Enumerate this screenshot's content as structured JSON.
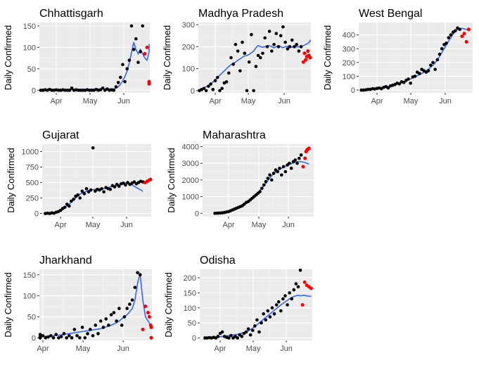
{
  "colors": {
    "panel_bg": "#ebebeb",
    "grid_major": "#ffffff",
    "grid_minor": "#f5f5f5",
    "observed": "#000000",
    "recent": "#ff0000",
    "fitted": "#3366ff",
    "tick_text": "#4d4d4d"
  },
  "chart_data": [
    {
      "type": "scatter",
      "title": "Chhattisgarh",
      "ylabel": "Daily Confirmed",
      "x_ticks": [
        "Apr",
        "May",
        "Jun"
      ],
      "y_ticks": [
        0,
        50,
        100,
        150
      ],
      "ylim": [
        -6,
        158
      ],
      "x": [
        -14,
        -12,
        -10,
        -8,
        -6,
        -4,
        -2,
        0,
        2,
        4,
        6,
        8,
        10,
        12,
        14,
        16,
        18,
        20,
        22,
        24,
        26,
        28,
        30,
        32,
        34,
        36,
        38,
        40,
        42,
        44,
        46,
        48,
        50,
        52,
        54,
        56,
        58,
        60,
        62,
        64,
        66,
        68,
        70,
        72,
        74,
        76,
        78
      ],
      "values": [
        0,
        0,
        1,
        0,
        2,
        0,
        0,
        1,
        0,
        0,
        1,
        0,
        0,
        0,
        5,
        0,
        1,
        0,
        0,
        0,
        0,
        1,
        0,
        0,
        0,
        2,
        0,
        1,
        5,
        0,
        3,
        0,
        1,
        0,
        8,
        18,
        30,
        60,
        20,
        50,
        70,
        150,
        95,
        120,
        65,
        90,
        150
      ],
      "fitted": [
        0,
        0,
        0,
        0,
        1,
        1,
        1,
        1,
        1,
        1,
        1,
        1,
        1,
        1,
        1,
        1,
        2,
        2,
        2,
        2,
        2,
        2,
        2,
        2,
        2,
        2,
        3,
        3,
        3,
        3,
        3,
        3,
        3,
        3,
        5,
        8,
        14,
        22,
        32,
        45,
        65,
        88,
        112,
        95,
        85,
        95,
        85
      ],
      "recent": [
        {
          "x": 80,
          "y": 85
        },
        {
          "x": 82,
          "y": 100
        },
        {
          "x": 84,
          "y": 20
        },
        {
          "x": 86,
          "y": 15
        }
      ],
      "recent_fitted": [
        {
          "x": 78,
          "y": 85
        },
        {
          "x": 80,
          "y": 75
        },
        {
          "x": 82,
          "y": 70
        },
        {
          "x": 84,
          "y": 90
        },
        {
          "x": 86,
          "y": 108
        }
      ]
    },
    {
      "type": "scatter",
      "title": "Madhya Pradesh",
      "ylabel": "Daily Confirmed",
      "x_ticks": [
        "Apr",
        "May",
        "Jun"
      ],
      "y_ticks": [
        0,
        100,
        200,
        300
      ],
      "ylim": [
        -10,
        310
      ],
      "x": [
        -14,
        -12,
        -10,
        -8,
        -6,
        -4,
        -2,
        0,
        2,
        4,
        6,
        8,
        10,
        12,
        14,
        16,
        18,
        20,
        22,
        24,
        26,
        28,
        30,
        32,
        34,
        36,
        38,
        40,
        42,
        44,
        46,
        48,
        50,
        52,
        54,
        56,
        58,
        60,
        62,
        64,
        66,
        68,
        70,
        72,
        74,
        76
      ],
      "values": [
        0,
        5,
        10,
        0,
        20,
        30,
        5,
        45,
        60,
        0,
        10,
        35,
        40,
        80,
        150,
        120,
        210,
        180,
        90,
        220,
        170,
        0,
        130,
        255,
        0,
        110,
        160,
        150,
        170,
        240,
        200,
        270,
        180,
        210,
        260,
        200,
        250,
        290,
        220,
        190,
        200,
        230,
        200,
        210,
        180,
        200
      ],
      "fitted": [
        5,
        8,
        12,
        18,
        24,
        30,
        40,
        50,
        60,
        70,
        80,
        90,
        100,
        110,
        118,
        125,
        130,
        138,
        145,
        152,
        158,
        160,
        165,
        172,
        180,
        195,
        205,
        200,
        198,
        200,
        202,
        205,
        200,
        195,
        200,
        205,
        200,
        195,
        200,
        202,
        200,
        198,
        200,
        200,
        200,
        200
      ],
      "recent": [
        {
          "x": 78,
          "y": 130
        },
        {
          "x": 79,
          "y": 170
        },
        {
          "x": 80,
          "y": 140
        },
        {
          "x": 81,
          "y": 155
        },
        {
          "x": 82,
          "y": 180
        },
        {
          "x": 83,
          "y": 160
        },
        {
          "x": 84,
          "y": 150
        }
      ],
      "recent_fitted": [
        {
          "x": 76,
          "y": 200
        },
        {
          "x": 78,
          "y": 205
        },
        {
          "x": 80,
          "y": 210
        },
        {
          "x": 82,
          "y": 215
        },
        {
          "x": 84,
          "y": 225
        },
        {
          "x": 86,
          "y": 232
        }
      ]
    },
    {
      "type": "scatter",
      "title": "West Bengal",
      "ylabel": "Daily Confirmed",
      "x_ticks": [
        "Apr",
        "May",
        "Jun"
      ],
      "y_ticks": [
        0,
        100,
        200,
        300,
        400
      ],
      "ylim": [
        -20,
        490
      ],
      "x": [
        -14,
        -12,
        -10,
        -8,
        -6,
        -4,
        -2,
        0,
        2,
        4,
        6,
        8,
        10,
        12,
        14,
        16,
        18,
        20,
        22,
        24,
        26,
        28,
        30,
        32,
        34,
        36,
        38,
        40,
        42,
        44,
        46,
        48,
        50,
        52,
        54,
        56,
        58,
        60,
        62,
        64,
        66,
        68,
        70,
        72,
        74
      ],
      "values": [
        0,
        0,
        2,
        5,
        5,
        10,
        8,
        12,
        15,
        10,
        20,
        25,
        15,
        30,
        35,
        40,
        50,
        45,
        60,
        55,
        70,
        80,
        50,
        95,
        100,
        130,
        120,
        150,
        140,
        130,
        140,
        180,
        200,
        150,
        220,
        260,
        300,
        330,
        340,
        380,
        400,
        420,
        430,
        450,
        440
      ],
      "fitted": [
        0,
        1,
        2,
        3,
        5,
        7,
        9,
        12,
        15,
        18,
        21,
        24,
        27,
        30,
        34,
        38,
        43,
        48,
        54,
        60,
        67,
        74,
        81,
        89,
        97,
        105,
        112,
        120,
        130,
        140,
        152,
        165,
        180,
        198,
        220,
        245,
        272,
        300,
        328,
        355,
        380,
        405,
        425,
        440,
        448
      ],
      "recent": [
        {
          "x": 76,
          "y": 390
        },
        {
          "x": 78,
          "y": 410
        },
        {
          "x": 80,
          "y": 350
        },
        {
          "x": 82,
          "y": 440
        }
      ],
      "recent_fitted": [
        {
          "x": 74,
          "y": 448
        },
        {
          "x": 77,
          "y": 445
        },
        {
          "x": 80,
          "y": 440
        },
        {
          "x": 82,
          "y": 435
        }
      ]
    },
    {
      "type": "scatter",
      "title": "Gujarat",
      "ylabel": "Daily Confirmed",
      "x_ticks": [
        "Apr",
        "May",
        "Jun"
      ],
      "y_ticks": [
        0,
        250,
        500,
        750,
        1000
      ],
      "ylim": [
        -50,
        1120
      ],
      "x": [
        -14,
        -12,
        -10,
        -8,
        -6,
        -4,
        -2,
        0,
        2,
        4,
        6,
        8,
        10,
        12,
        14,
        16,
        18,
        20,
        22,
        24,
        26,
        28,
        30,
        32,
        34,
        36,
        38,
        40,
        42,
        44,
        46,
        48,
        50,
        52,
        54,
        56,
        58,
        60,
        62,
        64,
        66,
        68,
        70,
        72,
        74,
        76
      ],
      "values": [
        0,
        5,
        0,
        10,
        5,
        20,
        30,
        50,
        80,
        100,
        150,
        120,
        200,
        230,
        280,
        300,
        250,
        360,
        320,
        400,
        350,
        380,
        1060,
        360,
        390,
        380,
        400,
        350,
        420,
        400,
        390,
        450,
        430,
        470,
        440,
        480,
        490,
        460,
        500,
        470,
        490,
        510,
        480,
        500,
        520,
        510
      ],
      "fitted": [
        0,
        2,
        5,
        8,
        12,
        18,
        25,
        40,
        60,
        90,
        120,
        150,
        185,
        220,
        250,
        280,
        310,
        330,
        345,
        360,
        370,
        380,
        385,
        390,
        395,
        398,
        400,
        405,
        410,
        420,
        430,
        440,
        450,
        460,
        470,
        480,
        490,
        495,
        490,
        480,
        460,
        440,
        420,
        400,
        380,
        360
      ],
      "recent": [
        {
          "x": 78,
          "y": 500
        },
        {
          "x": 80,
          "y": 520
        },
        {
          "x": 82,
          "y": 540
        },
        {
          "x": 84,
          "y": 550
        }
      ],
      "recent_fitted": [
        {
          "x": 76,
          "y": 505
        },
        {
          "x": 79,
          "y": 510
        },
        {
          "x": 82,
          "y": 520
        },
        {
          "x": 84,
          "y": 525
        }
      ]
    },
    {
      "type": "scatter",
      "title": "Maharashtra",
      "ylabel": "Daily Confirmed",
      "x_ticks": [
        "Apr",
        "May",
        "Jun"
      ],
      "y_ticks": [
        0,
        1000,
        2000,
        3000,
        4000
      ],
      "ylim": [
        -200,
        4150
      ],
      "x": [
        -14,
        -12,
        -10,
        -8,
        -6,
        -4,
        -2,
        0,
        2,
        4,
        6,
        8,
        10,
        12,
        14,
        16,
        18,
        20,
        22,
        24,
        26,
        28,
        30,
        32,
        34,
        36,
        38,
        40,
        42,
        44,
        46,
        48,
        50,
        52,
        54,
        56,
        58,
        60,
        62,
        64,
        66,
        68,
        70,
        72,
        74
      ],
      "values": [
        0,
        5,
        10,
        20,
        30,
        50,
        80,
        100,
        150,
        200,
        250,
        300,
        350,
        400,
        450,
        550,
        650,
        700,
        800,
        900,
        1000,
        1100,
        1200,
        1300,
        1500,
        1700,
        1900,
        2100,
        2300,
        2000,
        2400,
        2600,
        2500,
        2700,
        2300,
        2800,
        2500,
        2900,
        3000,
        2700,
        3100,
        3200,
        3000,
        3300,
        3500
      ],
      "fitted": [
        0,
        5,
        10,
        20,
        30,
        45,
        65,
        90,
        120,
        160,
        200,
        250,
        300,
        360,
        430,
        510,
        600,
        700,
        800,
        900,
        1000,
        1120,
        1250,
        1380,
        1520,
        1660,
        1800,
        1950,
        2100,
        2250,
        2380,
        2480,
        2560,
        2630,
        2700,
        2760,
        2820,
        2880,
        2930,
        2980,
        3020,
        3060,
        3100,
        3120,
        3100
      ],
      "recent": [
        {
          "x": 76,
          "y": 2800
        },
        {
          "x": 78,
          "y": 3300
        },
        {
          "x": 79,
          "y": 3700
        },
        {
          "x": 80,
          "y": 3800
        },
        {
          "x": 81,
          "y": 3850
        },
        {
          "x": 82,
          "y": 3900
        }
      ],
      "recent_fitted": [
        {
          "x": 74,
          "y": 3100
        },
        {
          "x": 77,
          "y": 3050
        },
        {
          "x": 80,
          "y": 3000
        },
        {
          "x": 82,
          "y": 2950
        }
      ]
    },
    {
      "type": "scatter",
      "title": "Jharkhand",
      "ylabel": "Daily Confirmed",
      "x_ticks": [
        "Apr",
        "May",
        "Jun"
      ],
      "y_ticks": [
        0,
        50,
        100,
        150
      ],
      "ylim": [
        -6,
        163
      ],
      "x": [
        -14,
        -12,
        -10,
        -8,
        -6,
        -4,
        -2,
        0,
        2,
        4,
        6,
        8,
        10,
        12,
        14,
        16,
        18,
        20,
        22,
        24,
        26,
        28,
        30,
        32,
        34,
        36,
        38,
        40,
        42,
        44,
        46,
        48,
        50,
        52,
        54,
        56,
        58,
        60,
        62,
        64,
        66,
        68,
        70,
        72,
        74
      ],
      "values": [
        0,
        0,
        0,
        2,
        0,
        8,
        0,
        5,
        0,
        2,
        5,
        0,
        8,
        0,
        3,
        10,
        0,
        5,
        0,
        20,
        5,
        0,
        25,
        0,
        10,
        20,
        5,
        30,
        10,
        40,
        25,
        45,
        30,
        55,
        60,
        40,
        70,
        30,
        50,
        70,
        80,
        90,
        120,
        155,
        150
      ],
      "fitted": [
        0,
        0,
        1,
        1,
        2,
        2,
        3,
        3,
        4,
        4,
        5,
        5,
        6,
        6,
        7,
        8,
        9,
        10,
        11,
        12,
        13,
        14,
        15,
        16,
        17,
        18,
        19,
        20,
        21,
        22,
        24,
        26,
        28,
        30,
        33,
        36,
        40,
        45,
        50,
        55,
        62,
        70,
        90,
        130,
        155
      ],
      "recent": [
        {
          "x": 76,
          "y": 20
        },
        {
          "x": 78,
          "y": 75
        },
        {
          "x": 80,
          "y": 60
        },
        {
          "x": 81,
          "y": 50
        },
        {
          "x": 82,
          "y": 30
        },
        {
          "x": 83,
          "y": 25
        },
        {
          "x": 84,
          "y": 0
        }
      ],
      "recent_fitted": [
        {
          "x": 74,
          "y": 150
        },
        {
          "x": 76,
          "y": 90
        },
        {
          "x": 78,
          "y": 50
        },
        {
          "x": 80,
          "y": 40
        },
        {
          "x": 82,
          "y": 30
        },
        {
          "x": 84,
          "y": 25
        }
      ]
    },
    {
      "type": "scatter",
      "title": "Odisha",
      "ylabel": "Daily Confirmed",
      "x_ticks": [
        "Apr",
        "May",
        "Jun"
      ],
      "y_ticks": [
        0,
        50,
        100,
        150,
        200
      ],
      "ylim": [
        -8,
        228
      ],
      "x": [
        -14,
        -12,
        -10,
        -8,
        -6,
        -4,
        -2,
        0,
        2,
        4,
        6,
        8,
        10,
        12,
        14,
        16,
        18,
        20,
        22,
        24,
        26,
        28,
        30,
        32,
        34,
        36,
        38,
        40,
        42,
        44,
        46,
        48,
        50,
        52,
        54,
        56,
        58,
        60,
        62,
        64,
        66,
        68,
        70,
        72,
        74
      ],
      "values": [
        0,
        0,
        1,
        0,
        2,
        0,
        5,
        15,
        20,
        5,
        2,
        0,
        8,
        0,
        5,
        0,
        10,
        5,
        15,
        20,
        30,
        10,
        25,
        40,
        60,
        20,
        50,
        80,
        60,
        90,
        70,
        100,
        80,
        110,
        120,
        90,
        130,
        140,
        110,
        150,
        130,
        160,
        180,
        170,
        225
      ],
      "fitted": [
        0,
        0,
        0,
        1,
        1,
        2,
        3,
        4,
        5,
        6,
        7,
        8,
        9,
        10,
        11,
        12,
        14,
        16,
        18,
        20,
        24,
        28,
        32,
        38,
        44,
        50,
        56,
        62,
        68,
        74,
        80,
        86,
        92,
        98,
        104,
        110,
        115,
        120,
        125,
        130,
        134,
        138,
        140,
        142,
        140
      ],
      "recent": [
        {
          "x": 76,
          "y": 110
        },
        {
          "x": 78,
          "y": 185
        },
        {
          "x": 80,
          "y": 175
        },
        {
          "x": 82,
          "y": 170
        },
        {
          "x": 84,
          "y": 165
        }
      ],
      "recent_fitted": [
        {
          "x": 74,
          "y": 140
        },
        {
          "x": 77,
          "y": 142
        },
        {
          "x": 80,
          "y": 140
        },
        {
          "x": 84,
          "y": 138
        }
      ]
    }
  ]
}
